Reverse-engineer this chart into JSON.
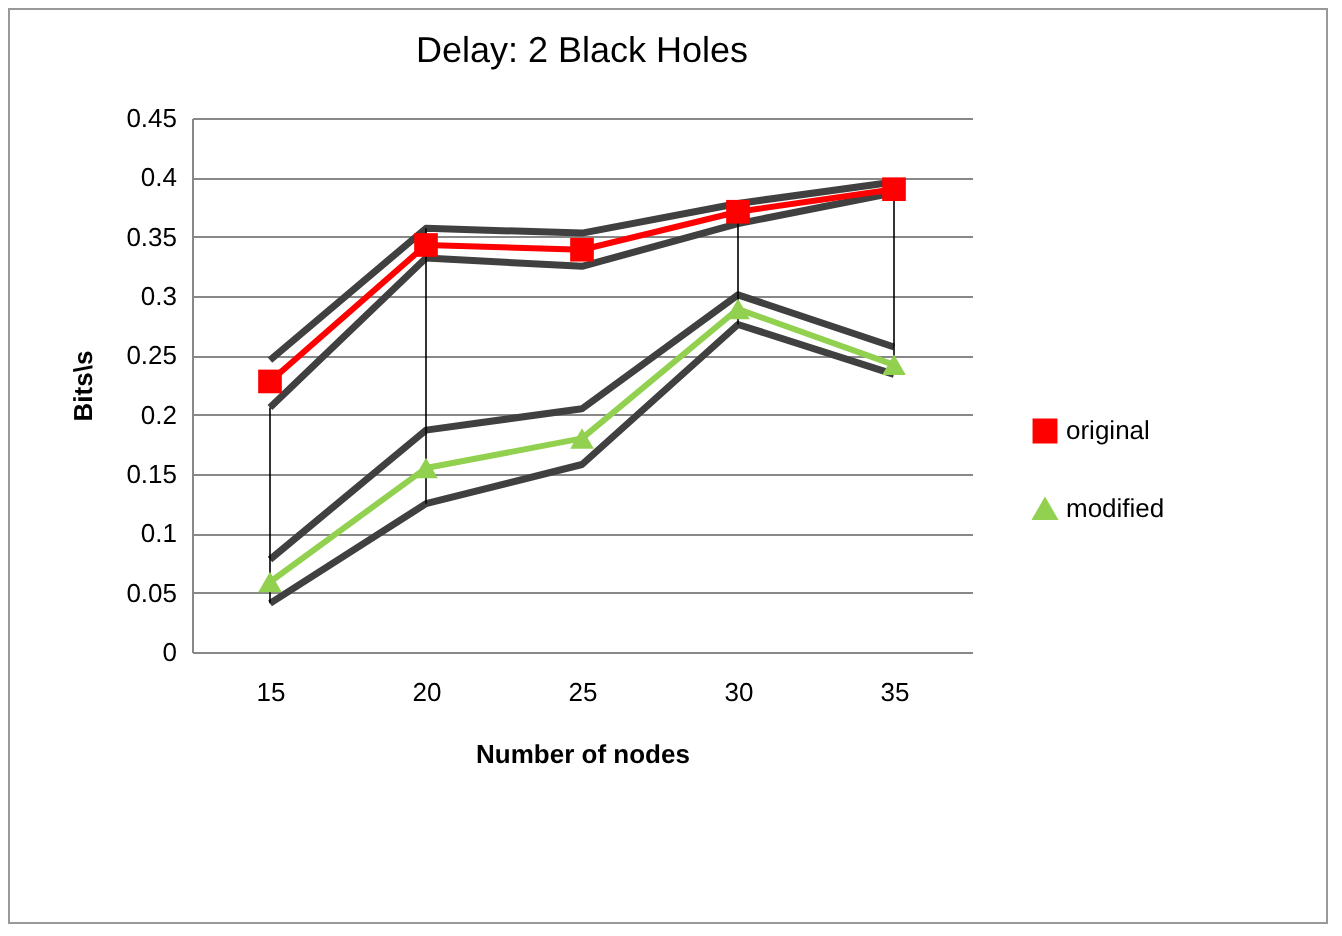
{
  "chart_data": {
    "type": "line",
    "title": "Delay: 2 Black Holes",
    "xlabel": "Number of nodes",
    "ylabel": "Bits\\s",
    "categories": [
      "15",
      "20",
      "25",
      "30",
      "35"
    ],
    "series": [
      {
        "color": "#404040",
        "marker": "none",
        "values": [
          0.246,
          0.357,
          0.353,
          0.378,
          0.396
        ]
      },
      {
        "color": "#404040",
        "marker": "none",
        "values": [
          0.206,
          0.332,
          0.325,
          0.361,
          0.387
        ]
      },
      {
        "color": "#404040",
        "marker": "none",
        "values": [
          0.078,
          0.187,
          0.205,
          0.301,
          0.257
        ]
      },
      {
        "color": "#404040",
        "marker": "none",
        "values": [
          0.041,
          0.125,
          0.158,
          0.276,
          0.234
        ]
      },
      {
        "color": "#000000",
        "marker": "none",
        "x": [
          "15",
          "15",
          "20",
          "20",
          "30",
          "30",
          "35",
          "35"
        ],
        "values": [
          0.206,
          0.041,
          0.357,
          0.125,
          0.378,
          0.276,
          0.396,
          0.234
        ]
      },
      {
        "name": "original",
        "color": "#ff0000",
        "marker": "square",
        "values": [
          0.228,
          0.343,
          0.339,
          0.371,
          0.39
        ]
      },
      {
        "name": "modified",
        "color": "#92d050",
        "marker": "triangle",
        "values": [
          0.059,
          0.155,
          0.18,
          0.289,
          0.242
        ]
      }
    ],
    "ylim": [
      0,
      0.45
    ],
    "yticks": [
      0,
      0.05,
      0.1,
      0.15,
      0.2,
      0.25,
      0.3,
      0.35,
      0.4,
      0.45
    ],
    "grid": "y",
    "legend": "right"
  }
}
